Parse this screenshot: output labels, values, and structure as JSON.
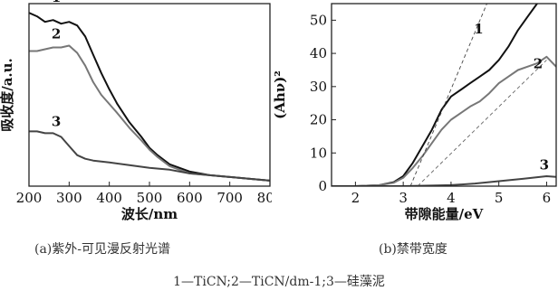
{
  "figure": {
    "caption_a": "(a)紫外-可见漫反射光谱",
    "caption_b": "(b)禁带宽度",
    "legend_note": "1—TiCN;2—TiCN/dm-1;3—硅藻泥"
  },
  "chart_data": [
    {
      "type": "line",
      "title": "",
      "xlabel": "波长/nm",
      "ylabel": "吸收度/a.u.",
      "xlim": [
        200,
        800
      ],
      "ylim": [
        0,
        1
      ],
      "xticks": [
        200,
        300,
        400,
        500,
        600,
        700,
        800
      ],
      "yticks": [],
      "grid": false,
      "legend": "none",
      "curve_labels": [
        "1",
        "2",
        "3"
      ],
      "series": [
        {
          "label": "1",
          "color": "#111111",
          "x": [
            200,
            220,
            240,
            260,
            280,
            300,
            320,
            340,
            360,
            380,
            400,
            420,
            450,
            480,
            500,
            520,
            550,
            600,
            650,
            700,
            750,
            800
          ],
          "y": [
            0.95,
            0.93,
            0.9,
            0.91,
            0.89,
            0.9,
            0.88,
            0.82,
            0.72,
            0.62,
            0.53,
            0.45,
            0.35,
            0.27,
            0.21,
            0.17,
            0.12,
            0.08,
            0.06,
            0.05,
            0.04,
            0.03
          ]
        },
        {
          "label": "2",
          "color": "#777777",
          "x": [
            200,
            220,
            240,
            260,
            280,
            300,
            320,
            340,
            360,
            380,
            400,
            420,
            450,
            480,
            500,
            520,
            550,
            600,
            650,
            700,
            750,
            800
          ],
          "y": [
            0.74,
            0.74,
            0.75,
            0.76,
            0.76,
            0.77,
            0.73,
            0.66,
            0.57,
            0.5,
            0.45,
            0.4,
            0.32,
            0.25,
            0.2,
            0.16,
            0.11,
            0.07,
            0.06,
            0.05,
            0.04,
            0.03
          ]
        },
        {
          "label": "3",
          "color": "#444444",
          "x": [
            200,
            220,
            240,
            260,
            280,
            300,
            320,
            340,
            360,
            400,
            450,
            500,
            550,
            600,
            650,
            700,
            750,
            800
          ],
          "y": [
            0.3,
            0.3,
            0.29,
            0.29,
            0.27,
            0.22,
            0.17,
            0.15,
            0.14,
            0.13,
            0.115,
            0.1,
            0.09,
            0.07,
            0.06,
            0.05,
            0.04,
            0.03
          ]
        }
      ]
    },
    {
      "type": "line",
      "title": "",
      "xlabel": "带隙能量/eV",
      "ylabel": "(Ahν)²",
      "xlim": [
        1.5,
        6.2
      ],
      "ylim": [
        0,
        55
      ],
      "xticks": [
        2,
        3,
        4,
        5,
        6
      ],
      "yticks": [
        0,
        10,
        20,
        30,
        40,
        50
      ],
      "grid": false,
      "legend": "none",
      "curve_labels": [
        "1",
        "2",
        "3"
      ],
      "series": [
        {
          "label": "1",
          "color": "#111111",
          "x": [
            1.5,
            2.0,
            2.5,
            2.8,
            3.0,
            3.2,
            3.4,
            3.6,
            3.8,
            4.0,
            4.2,
            4.4,
            4.6,
            4.8,
            5.0,
            5.2,
            5.4,
            5.6,
            5.8,
            6.0,
            6.2
          ],
          "y": [
            0,
            0,
            0.3,
            1.2,
            3,
            7,
            12,
            17,
            23,
            27,
            29,
            31,
            33,
            35,
            38,
            42,
            47,
            51,
            55,
            57,
            60
          ]
        },
        {
          "label": "2",
          "color": "#777777",
          "x": [
            1.5,
            2.0,
            2.5,
            2.8,
            3.0,
            3.2,
            3.4,
            3.6,
            3.8,
            4.0,
            4.2,
            4.4,
            4.6,
            4.8,
            5.0,
            5.2,
            5.4,
            5.6,
            5.8,
            6.0,
            6.2
          ],
          "y": [
            0,
            0,
            0.3,
            1.0,
            2.5,
            5.5,
            9,
            13,
            17,
            20,
            22,
            24,
            25.5,
            28,
            31,
            33,
            35,
            36,
            37,
            39,
            36
          ]
        },
        {
          "label": "3",
          "color": "#444444",
          "x": [
            1.5,
            2.0,
            3.0,
            4.0,
            4.5,
            5.0,
            5.5,
            6.0,
            6.2
          ],
          "y": [
            0,
            0,
            0,
            0.3,
            0.8,
            1.5,
            2.2,
            3.0,
            2.8
          ]
        },
        {
          "label": "",
          "color": "#444444",
          "dashed": true,
          "x": [
            3.15,
            4.75
          ],
          "y": [
            0,
            55
          ]
        },
        {
          "label": "",
          "color": "#666666",
          "dashed": true,
          "x": [
            3.3,
            6.0
          ],
          "y": [
            0,
            38
          ]
        }
      ]
    }
  ]
}
